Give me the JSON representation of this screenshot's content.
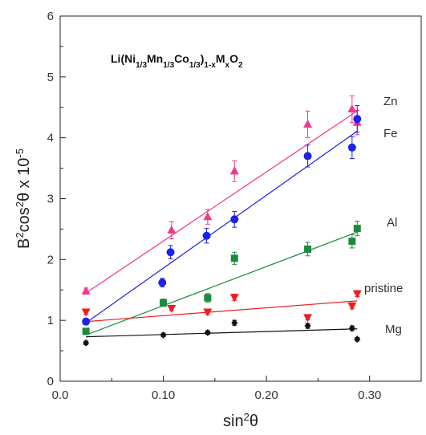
{
  "chart_data": {
    "type": "scatter",
    "title": "",
    "annotation": {
      "parts": [
        {
          "t": "Li(Ni",
          "s": "n"
        },
        {
          "t": "1/3",
          "s": "sub"
        },
        {
          "t": "Mn",
          "s": "n"
        },
        {
          "t": "1/3",
          "s": "sub"
        },
        {
          "t": "Co",
          "s": "n"
        },
        {
          "t": "1/3",
          "s": "sub"
        },
        {
          "t": ")",
          "s": "n"
        },
        {
          "t": "1-x",
          "s": "sub"
        },
        {
          "t": "M",
          "s": "n"
        },
        {
          "t": "x",
          "s": "sub"
        },
        {
          "t": "O",
          "s": "n"
        },
        {
          "t": "2",
          "s": "sub"
        }
      ]
    },
    "xlabel": {
      "base": "sin",
      "sup": "2",
      "tail": "θ"
    },
    "ylabel": {
      "pre": "B",
      "sup1": "2",
      "mid": "cos",
      "sup2": "2",
      "post": "θ x 10",
      "sup3": "-5"
    },
    "xlim": [
      0.0,
      0.35
    ],
    "ylim": [
      0,
      6
    ],
    "xticks": [
      {
        "v": 0.0,
        "label": "0.0"
      },
      {
        "v": 0.1,
        "label": "0.10"
      },
      {
        "v": 0.2,
        "label": "0.20"
      },
      {
        "v": 0.3,
        "label": "0.30"
      }
    ],
    "yticks": [
      {
        "v": 0,
        "label": "0"
      },
      {
        "v": 1,
        "label": "1"
      },
      {
        "v": 2,
        "label": "2"
      },
      {
        "v": 3,
        "label": "3"
      },
      {
        "v": 4,
        "label": "4"
      },
      {
        "v": 5,
        "label": "5"
      },
      {
        "v": 6,
        "label": "6"
      }
    ],
    "grid": false,
    "series": [
      {
        "name": "Zn",
        "marker": "triangle-up",
        "color": "#f0388f",
        "x": [
          0.025,
          0.108,
          0.143,
          0.169,
          0.24,
          0.283,
          0.288
        ],
        "y": [
          1.48,
          2.48,
          2.7,
          3.45,
          4.22,
          4.47,
          4.25
        ],
        "err": [
          0.05,
          0.14,
          0.12,
          0.17,
          0.22,
          0.22,
          0.2
        ],
        "fit": [
          [
            0.025,
            1.45
          ],
          [
            0.288,
            4.44
          ]
        ]
      },
      {
        "name": "Fe",
        "marker": "circle",
        "color": "#1e22e6",
        "x": [
          0.025,
          0.099,
          0.107,
          0.142,
          0.169,
          0.24,
          0.283,
          0.288
        ],
        "y": [
          0.98,
          1.62,
          2.12,
          2.39,
          2.66,
          3.7,
          3.84,
          4.31
        ],
        "err": [
          0.05,
          0.07,
          0.11,
          0.12,
          0.13,
          0.18,
          0.18,
          0.22
        ],
        "fit": [
          [
            0.025,
            0.96
          ],
          [
            0.288,
            4.11
          ]
        ]
      },
      {
        "name": "Al",
        "marker": "square",
        "color": "#1c8a3e",
        "x": [
          0.025,
          0.1,
          0.143,
          0.169,
          0.24,
          0.283,
          0.288
        ],
        "y": [
          0.82,
          1.29,
          1.37,
          2.02,
          2.17,
          2.3,
          2.51
        ],
        "err": [
          0.04,
          0.06,
          0.07,
          0.1,
          0.11,
          0.11,
          0.12
        ],
        "fit": [
          [
            0.025,
            0.76
          ],
          [
            0.288,
            2.45
          ]
        ]
      },
      {
        "name": "pristine",
        "marker": "triangle-down",
        "color": "#ee1d1d",
        "x": [
          0.025,
          0.108,
          0.143,
          0.169,
          0.24,
          0.283,
          0.288
        ],
        "y": [
          1.14,
          1.2,
          1.14,
          1.38,
          1.05,
          1.24,
          1.44
        ],
        "err": [
          0.04,
          0.04,
          0.04,
          0.05,
          0.04,
          0.05,
          0.05
        ],
        "fit": [
          [
            0.025,
            0.98
          ],
          [
            0.288,
            1.32
          ]
        ]
      },
      {
        "name": "Mg",
        "marker": "diamond",
        "color": "#111111",
        "x": [
          0.025,
          0.1,
          0.143,
          0.169,
          0.24,
          0.283,
          0.288
        ],
        "y": [
          0.63,
          0.76,
          0.8,
          0.96,
          0.91,
          0.87,
          0.69
        ],
        "err": [
          0.03,
          0.03,
          0.03,
          0.04,
          0.04,
          0.04,
          0.03
        ],
        "fit": [
          [
            0.025,
            0.73
          ],
          [
            0.288,
            0.86
          ]
        ]
      }
    ]
  }
}
